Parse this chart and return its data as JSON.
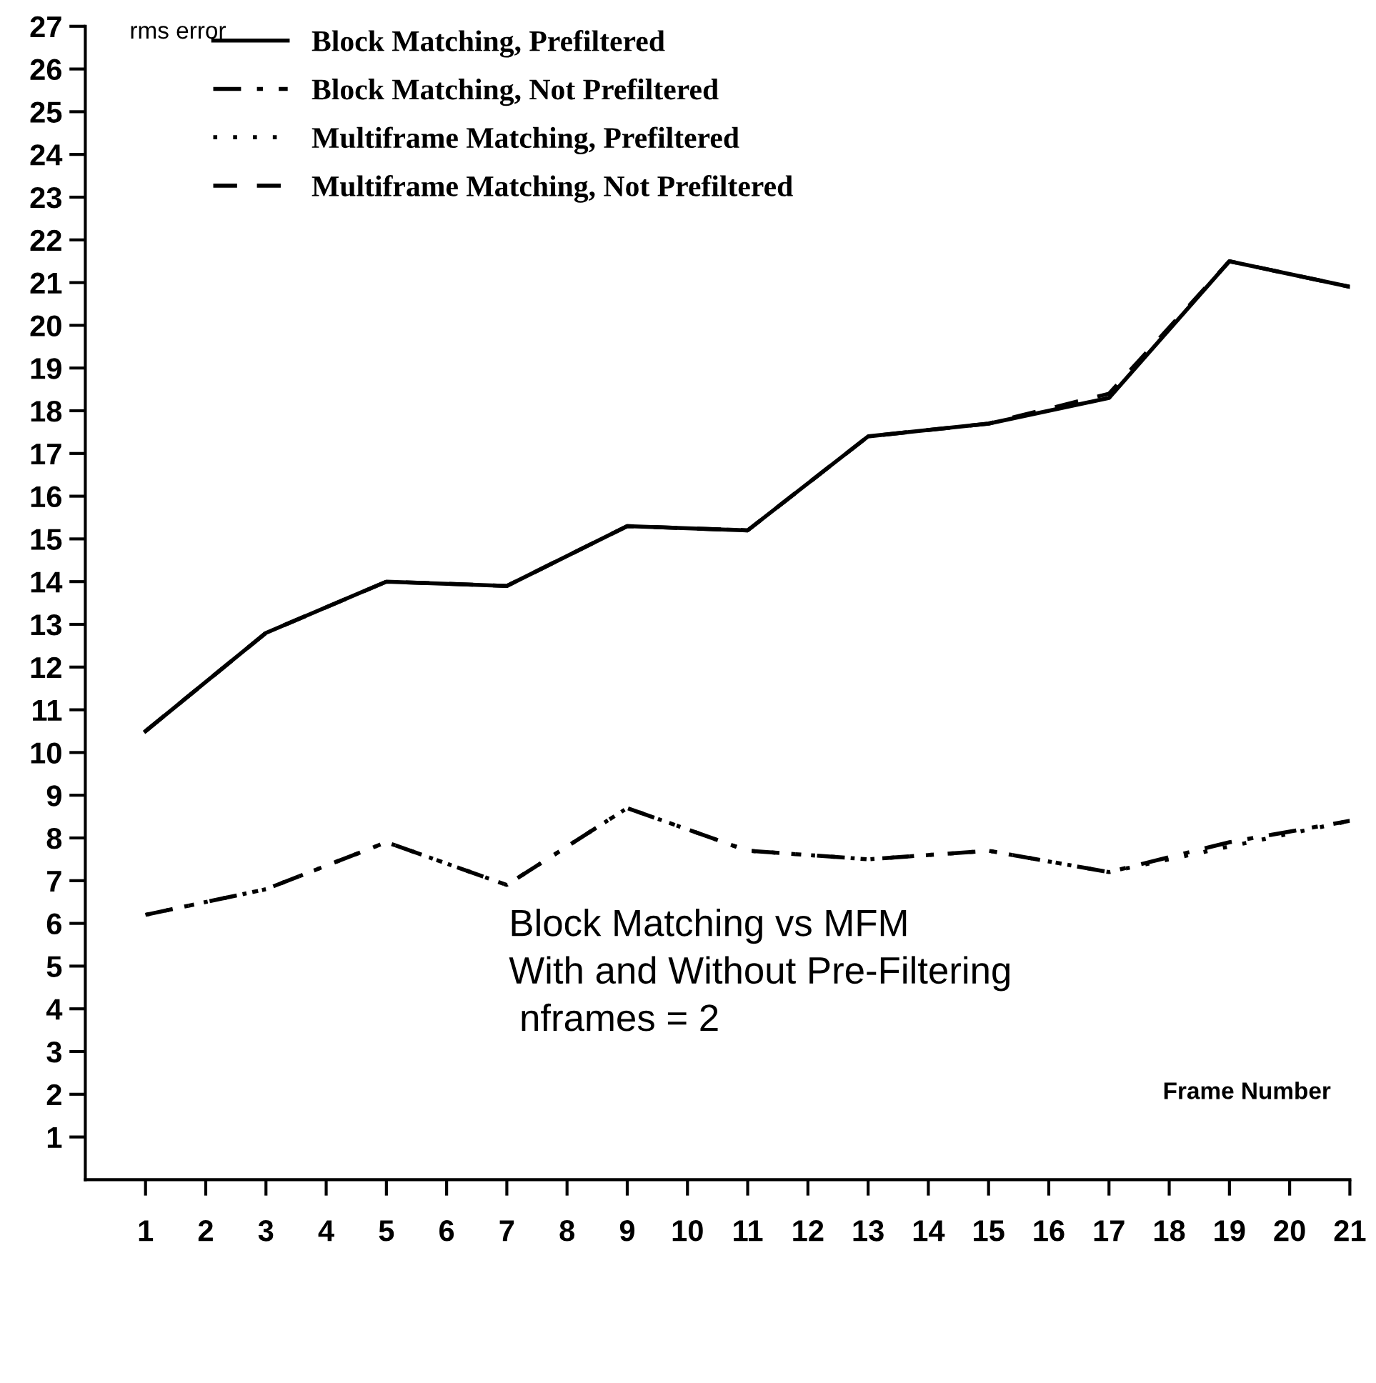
{
  "chart_data": {
    "type": "line",
    "ylabel": "rms error",
    "xlabel": "Frame Number",
    "x": [
      1,
      3,
      5,
      7,
      9,
      11,
      13,
      15,
      17,
      19,
      21
    ],
    "series": [
      {
        "name": "Block Matching, Prefiltered",
        "color": "#000000",
        "line_style": "solid",
        "values": [
          10.5,
          12.8,
          14.0,
          13.9,
          15.3,
          15.2,
          17.4,
          17.7,
          18.3,
          21.5,
          20.9
        ]
      },
      {
        "name": "Block Matching, Not Prefiltered",
        "color": "#000000",
        "line_style": "dashdot",
        "values": [
          6.2,
          6.8,
          7.9,
          6.9,
          8.7,
          7.7,
          7.5,
          7.7,
          7.2,
          7.9,
          8.4
        ]
      },
      {
        "name": "Multiframe Matching, Prefiltered",
        "color": "#000000",
        "line_style": "dotted",
        "values": [
          6.2,
          6.8,
          7.9,
          6.9,
          8.7,
          7.7,
          7.5,
          7.7,
          7.2,
          7.8,
          8.4
        ]
      },
      {
        "name": "Multiframe Matching, Not Prefiltered",
        "color": "#000000",
        "line_style": "dashed",
        "values": [
          10.5,
          12.8,
          14.0,
          13.9,
          15.3,
          15.2,
          17.4,
          17.7,
          18.4,
          21.5,
          20.9
        ]
      }
    ],
    "xlim": [
      0,
      21
    ],
    "xticks": [
      1,
      2,
      3,
      4,
      5,
      6,
      7,
      8,
      9,
      10,
      11,
      12,
      13,
      14,
      15,
      16,
      17,
      18,
      19,
      20,
      21
    ],
    "ylim": [
      0,
      27
    ],
    "yticks": [
      1,
      2,
      3,
      4,
      5,
      6,
      7,
      8,
      9,
      10,
      11,
      12,
      13,
      14,
      15,
      16,
      17,
      18,
      19,
      20,
      21,
      22,
      23,
      24,
      25,
      26,
      27
    ],
    "grid": false,
    "legend": "top left",
    "marker": "none",
    "annotations": [
      "Block Matching vs MFM\nWith and Without Pre-Filtering\n nframes = 2"
    ]
  }
}
